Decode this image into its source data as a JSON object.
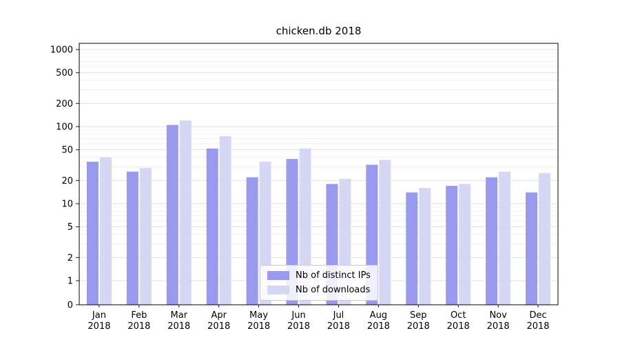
{
  "title": "chicken.db 2018",
  "chart_data": {
    "type": "bar",
    "title": "chicken.db 2018",
    "xlabel": "",
    "ylabel": "",
    "yscale": "symlog",
    "ylim": [
      0,
      1200
    ],
    "grid": true,
    "legend_position": "bottom-center",
    "yticks": [
      0,
      1,
      2,
      5,
      10,
      20,
      50,
      100,
      200,
      500,
      1000
    ],
    "categories": [
      "Jan",
      "Feb",
      "Mar",
      "Apr",
      "May",
      "Jun",
      "Jul",
      "Aug",
      "Sep",
      "Oct",
      "Nov",
      "Dec"
    ],
    "year_label": "2018",
    "series": [
      {
        "name": "Nb of distinct IPs",
        "color": "#9999ee",
        "values": [
          35,
          26,
          105,
          52,
          22,
          38,
          18,
          32,
          14,
          17,
          22,
          14
        ]
      },
      {
        "name": "Nb of downloads",
        "color": "#d6d6f5",
        "values": [
          40,
          29,
          120,
          75,
          35,
          52,
          21,
          37,
          16,
          18,
          26,
          25
        ]
      }
    ]
  }
}
